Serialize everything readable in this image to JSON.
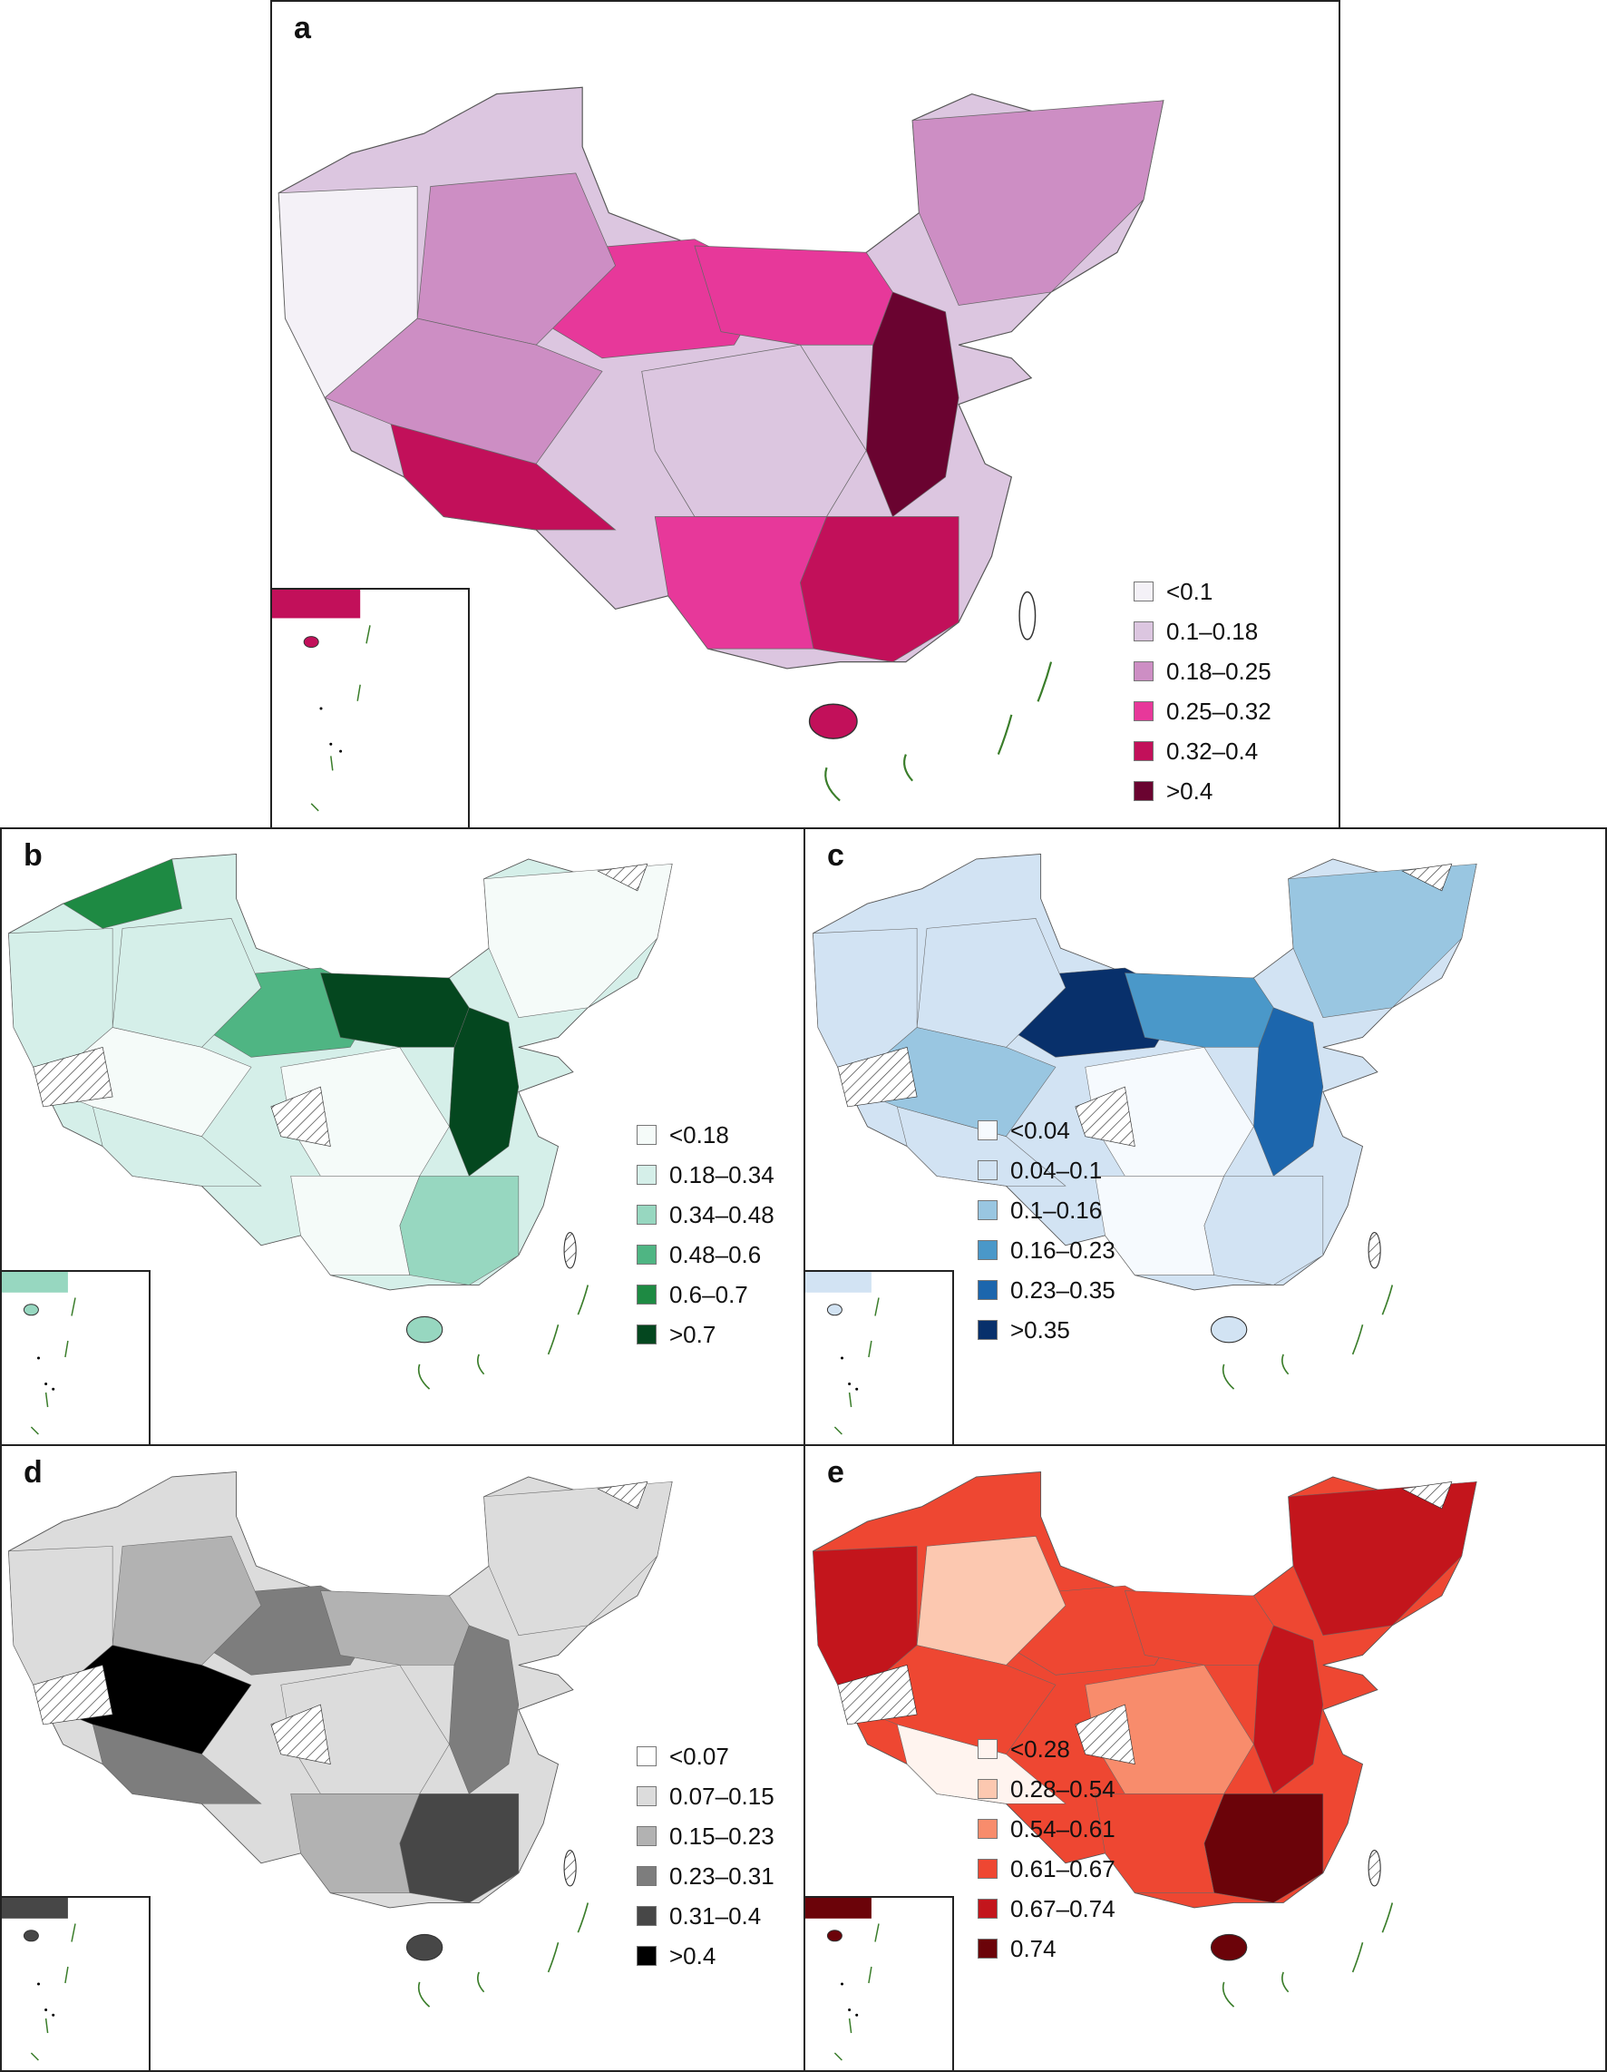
{
  "panels": [
    {
      "id": "a",
      "label": "a",
      "legend": [
        "<0.1",
        "0.1–0.18",
        "0.18–0.25",
        "0.25–0.32",
        "0.32–0.4",
        ">0.4"
      ],
      "colors": [
        "#f4f1f7",
        "#dcc6e0",
        "#cd8ec4",
        "#e7389a",
        "#c2105a",
        "#6a0330"
      ]
    },
    {
      "id": "b",
      "label": "b",
      "legend": [
        "<0.18",
        "0.18–0.34",
        "0.34–0.48",
        "0.48–0.6",
        "0.6–0.7",
        ">0.7"
      ],
      "colors": [
        "#f5fbf9",
        "#d5efe9",
        "#97d7c0",
        "#4fb583",
        "#1e8a43",
        "#04471f"
      ]
    },
    {
      "id": "c",
      "label": "c",
      "legend": [
        "<0.04",
        "0.04–0.1",
        "0.1–0.16",
        "0.16–0.23",
        "0.23–0.35",
        ">0.35"
      ],
      "colors": [
        "#f6fafe",
        "#d2e3f3",
        "#99c6e1",
        "#4a98c9",
        "#1c66ad",
        "#08306b"
      ]
    },
    {
      "id": "d",
      "label": "d",
      "legend": [
        "<0.07",
        "0.07–0.15",
        "0.15–0.23",
        "0.23–0.31",
        "0.31–0.4",
        ">0.4"
      ],
      "colors": [
        "#ffffff",
        "#dcdcdc",
        "#b2b2b2",
        "#7d7d7d",
        "#474747",
        "#000000"
      ]
    },
    {
      "id": "e",
      "label": "e",
      "legend": [
        "<0.28",
        "0.28–0.54",
        "0.54–0.61",
        "0.61–0.67",
        "0.67–0.74",
        "0.74"
      ],
      "colors": [
        "#fff4ef",
        "#fcc8b0",
        "#f88c6c",
        "#ee4732",
        "#c3151c",
        "#6b0309"
      ]
    }
  ]
}
